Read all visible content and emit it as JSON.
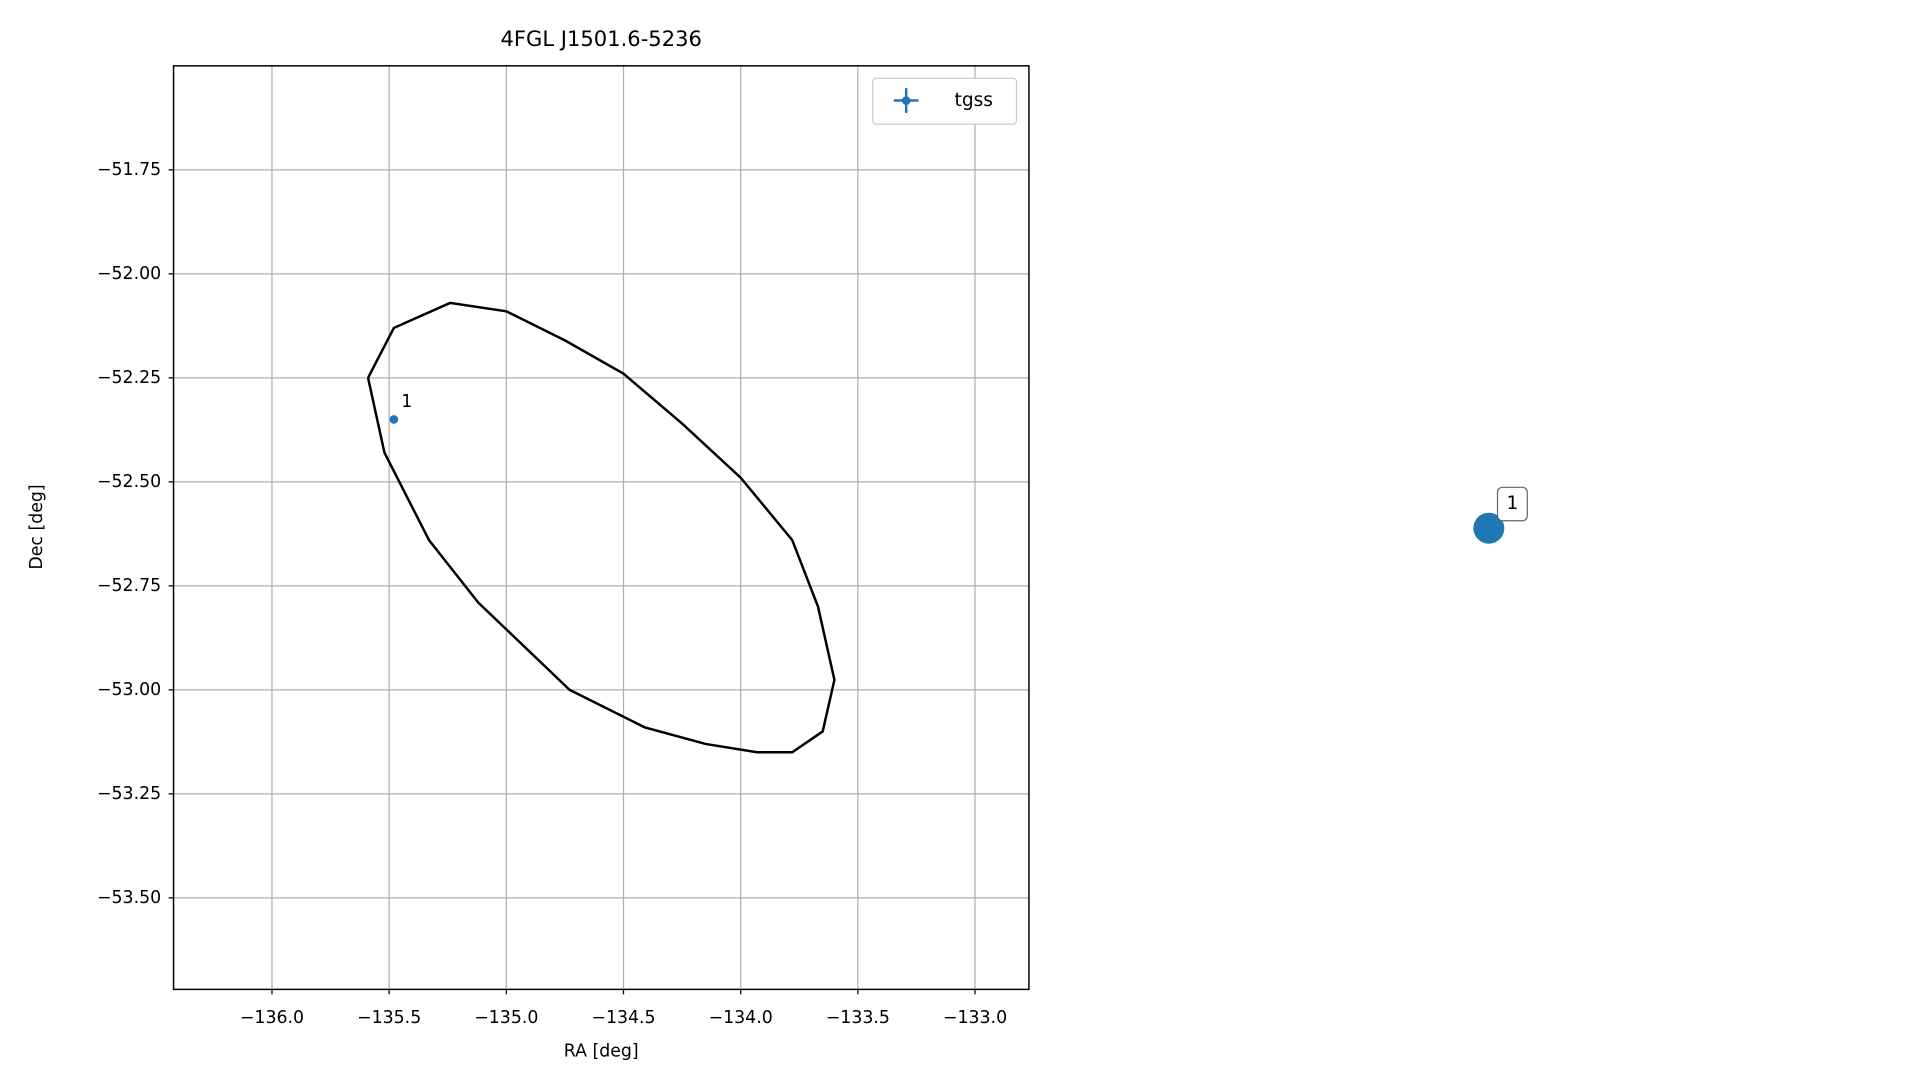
{
  "chart_data": [
    {
      "type": "scatter",
      "title": "4FGL J1501.6-5236",
      "x_label": "RA [deg]",
      "y_label": "Dec [deg]",
      "xlim": [
        -136.42,
        -132.77
      ],
      "ylim": [
        -53.72,
        -51.5
      ],
      "xticks": [
        {
          "value": -136.0,
          "label": "−136.0"
        },
        {
          "value": -135.5,
          "label": "−135.5"
        },
        {
          "value": -135.0,
          "label": "−135.0"
        },
        {
          "value": -134.5,
          "label": "−134.5"
        },
        {
          "value": -134.0,
          "label": "−134.0"
        },
        {
          "value": -133.5,
          "label": "−133.5"
        },
        {
          "value": -133.0,
          "label": "−133.0"
        }
      ],
      "yticks": [
        {
          "value": -51.75,
          "label": "−51.75"
        },
        {
          "value": -52.0,
          "label": "−52.00"
        },
        {
          "value": -52.25,
          "label": "−52.25"
        },
        {
          "value": -52.5,
          "label": "−52.50"
        },
        {
          "value": -52.75,
          "label": "−52.75"
        },
        {
          "value": -53.0,
          "label": "−53.00"
        },
        {
          "value": -53.25,
          "label": "−53.25"
        },
        {
          "value": -53.5,
          "label": "−53.50"
        }
      ],
      "grid": true,
      "legend": "upper right",
      "series": [
        {
          "name": "tgss",
          "color": "#1f77b4",
          "x": [
            -135.48
          ],
          "y": [
            -52.35
          ],
          "point_labels": [
            "1"
          ]
        }
      ],
      "ellipse": {
        "color": "#000000",
        "x": [
          -135.59,
          -135.48,
          -135.24,
          -135.0,
          -134.75,
          -134.5,
          -134.25,
          -134.0,
          -133.78,
          -133.67,
          -133.6,
          -133.65,
          -133.78,
          -133.93,
          -134.15,
          -134.41,
          -134.73,
          -135.12,
          -135.33,
          -135.52,
          -135.59
        ],
        "y": [
          -52.25,
          -52.13,
          -52.07,
          -52.09,
          -52.16,
          -52.24,
          -52.36,
          -52.49,
          -52.64,
          -52.8,
          -52.976,
          -53.1,
          -53.15,
          -53.15,
          -53.13,
          -53.09,
          -53.0,
          -52.79,
          -52.64,
          -52.43,
          -52.25
        ]
      }
    },
    {
      "type": "marker",
      "color": "#1f77b4",
      "point_labels": [
        "1"
      ]
    }
  ]
}
